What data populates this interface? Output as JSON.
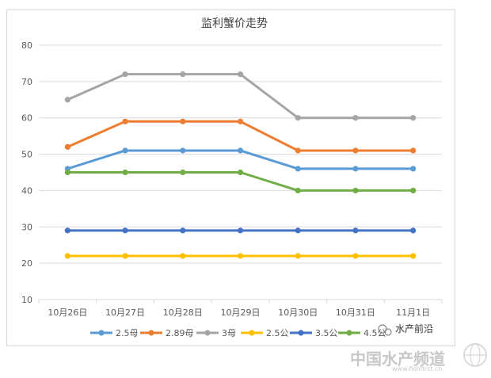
{
  "chart_data": {
    "type": "line",
    "title": "监利蟹价走势",
    "categories": [
      "10月26日",
      "10月27日",
      "10月28日",
      "10月29日",
      "10月30日",
      "10月31日",
      "11月1日"
    ],
    "ylim": [
      10,
      80
    ],
    "yticks": [
      10,
      20,
      30,
      40,
      50,
      60,
      70,
      80
    ],
    "grid": true,
    "legend": "bottom",
    "series": [
      {
        "name": "2.5母",
        "color": "#5b9bd5",
        "values": [
          46,
          51,
          51,
          51,
          46,
          46,
          46
        ]
      },
      {
        "name": "2.89母",
        "color": "#ed7d31",
        "values": [
          52,
          59,
          59,
          59,
          51,
          51,
          51
        ]
      },
      {
        "name": "3母",
        "color": "#a5a5a5",
        "values": [
          65,
          72,
          72,
          72,
          60,
          60,
          60
        ]
      },
      {
        "name": "2.5公",
        "color": "#ffc000",
        "values": [
          22,
          22,
          22,
          22,
          22,
          22,
          22
        ]
      },
      {
        "name": "3.5公",
        "color": "#4472c4",
        "values": [
          29,
          29,
          29,
          29,
          29,
          29,
          29
        ]
      },
      {
        "name": "4.5公",
        "color": "#70ad47",
        "values": [
          45,
          45,
          45,
          45,
          40,
          40,
          40
        ]
      }
    ]
  },
  "watermark": {
    "account": "水产前沿",
    "channel": "中国水产频道",
    "site": "www.fishfirst.cn"
  }
}
